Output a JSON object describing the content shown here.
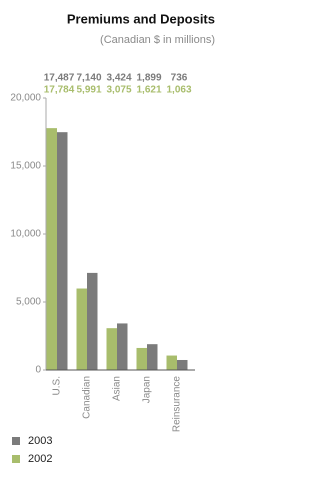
{
  "chart_data": {
    "type": "bar",
    "title": "Premiums and Deposits",
    "subtitle": "(Canadian $ in millions)",
    "categories": [
      "U.S.",
      "Canadian",
      "Asian",
      "Japan",
      "Reinsurance"
    ],
    "series": [
      {
        "name": "2003",
        "color": "#7b7b7b",
        "values": [
          17487,
          7140,
          3424,
          1899,
          736
        ],
        "value_labels": [
          "17,487",
          "7,140",
          "3,424",
          "1,899",
          "736"
        ]
      },
      {
        "name": "2002",
        "color": "#a8bd6c",
        "values": [
          17784,
          5991,
          3075,
          1621,
          1063
        ],
        "value_labels": [
          "17,784",
          "5,991",
          "3,075",
          "1,621",
          "1,063"
        ]
      }
    ],
    "ylim": [
      0,
      20000
    ],
    "yticks": [
      0,
      {
        "value": 5000,
        "label": "5,000"
      },
      {
        "value": 10000,
        "label": "10,000"
      },
      {
        "value": 15000,
        "label": "15,000"
      },
      {
        "value": 20000,
        "label": "20,000"
      }
    ]
  }
}
